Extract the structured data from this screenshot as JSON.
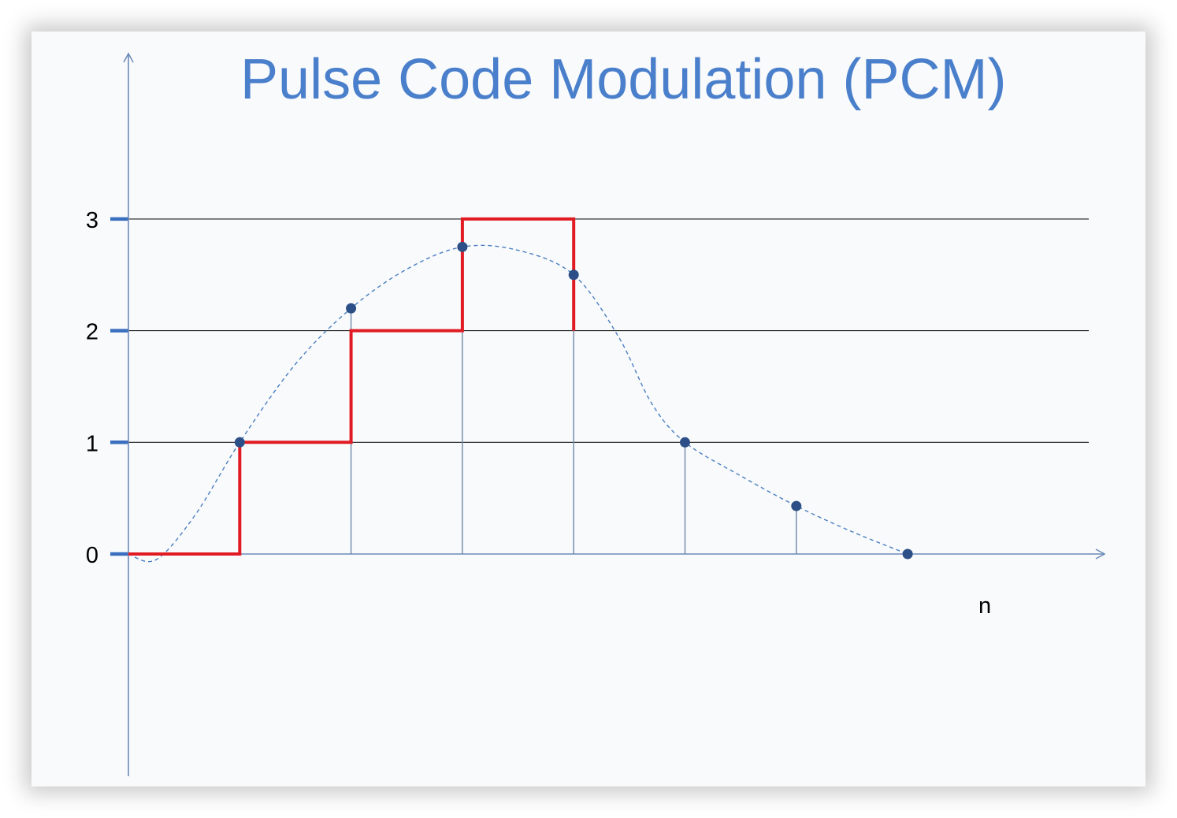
{
  "title": "Pulse Code Modulation (PCM)",
  "x_axis_label": "n",
  "colors": {
    "title": "#4a7fcb",
    "axis": "#6b8bb8",
    "level_lines": "#1f1f1f",
    "tick_marks": "#3a6fbf",
    "quantized": "#e01b24",
    "signal": "#4a7fc0",
    "samples": "#2b4f86",
    "stems": "#6d87a8",
    "background": "#f9fafc"
  },
  "chart_data": {
    "type": "line",
    "title": "Pulse Code Modulation (PCM)",
    "xlabel": "n",
    "ylabel": "",
    "y_ticks": [
      "0",
      "1",
      "2",
      "3"
    ],
    "ylim": [
      0,
      3
    ],
    "quantization_levels": [
      1,
      2,
      3
    ],
    "samples": {
      "n": [
        1,
        2,
        3,
        4,
        5,
        6,
        7
      ],
      "values": [
        1.0,
        2.2,
        2.75,
        2.5,
        1.0,
        0.43,
        0.0
      ]
    },
    "quantized": {
      "n_start": [
        0,
        1,
        2,
        3,
        4
      ],
      "n_end": [
        1,
        2,
        3,
        4,
        4
      ],
      "levels": [
        0,
        1,
        2,
        3,
        2
      ]
    },
    "signal_curve": {
      "n": [
        0,
        0.25,
        0.6,
        1,
        1.5,
        2,
        2.5,
        3,
        3.5,
        4,
        4.4,
        4.7,
        5,
        5.5,
        6,
        6.5,
        7
      ],
      "values": [
        0,
        -0.05,
        0.35,
        1.0,
        1.7,
        2.2,
        2.55,
        2.75,
        2.72,
        2.5,
        1.95,
        1.35,
        1.0,
        0.7,
        0.43,
        0.2,
        0.0
      ]
    }
  }
}
